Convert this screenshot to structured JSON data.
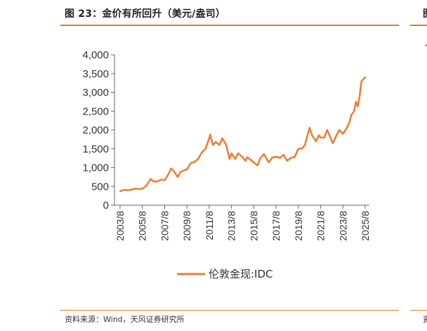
{
  "header": {
    "title": "图 23：金价有所回升（美元/盎司）",
    "title_cut": "图"
  },
  "footer": {
    "source": "资料来源：Wind，天风证券研究所",
    "source_cut": "资"
  },
  "colors": {
    "accent": "#e07b2b",
    "line": "#ed7d31"
  },
  "chart_data": {
    "type": "line",
    "title": "",
    "xlabel": "",
    "ylabel": "",
    "ylim": [
      0,
      4000
    ],
    "y_ticks": [
      "0",
      "500",
      "1,000",
      "1,500",
      "2,000",
      "2,500",
      "3,000",
      "3,500",
      "4,000"
    ],
    "x_ticks": [
      "2003/8",
      "2005/8",
      "2007/8",
      "2009/8",
      "2011/8",
      "2013/8",
      "2015/8",
      "2017/8",
      "2019/8",
      "2021/8",
      "2023/8",
      "2025/8"
    ],
    "legend_position": "bottom-center",
    "series": [
      {
        "name": "伦敦金现:IDC",
        "points": [
          [
            "2003-08",
            370
          ],
          [
            "2003-12",
            410
          ],
          [
            "2004-04",
            400
          ],
          [
            "2004-08",
            410
          ],
          [
            "2004-12",
            440
          ],
          [
            "2005-04",
            430
          ],
          [
            "2005-08",
            440
          ],
          [
            "2005-12",
            510
          ],
          [
            "2006-05",
            700
          ],
          [
            "2006-08",
            630
          ],
          [
            "2006-12",
            630
          ],
          [
            "2007-04",
            680
          ],
          [
            "2007-08",
            670
          ],
          [
            "2007-12",
            820
          ],
          [
            "2008-03",
            980
          ],
          [
            "2008-06",
            900
          ],
          [
            "2008-10",
            750
          ],
          [
            "2009-01",
            880
          ],
          [
            "2009-06",
            940
          ],
          [
            "2009-08",
            950
          ],
          [
            "2009-12",
            1120
          ],
          [
            "2010-04",
            1150
          ],
          [
            "2010-08",
            1230
          ],
          [
            "2010-12",
            1400
          ],
          [
            "2011-04",
            1500
          ],
          [
            "2011-08",
            1780
          ],
          [
            "2011-09",
            1880
          ],
          [
            "2011-12",
            1600
          ],
          [
            "2012-03",
            1680
          ],
          [
            "2012-07",
            1600
          ],
          [
            "2012-10",
            1780
          ],
          [
            "2013-02",
            1620
          ],
          [
            "2013-06",
            1230
          ],
          [
            "2013-08",
            1380
          ],
          [
            "2013-12",
            1230
          ],
          [
            "2014-03",
            1380
          ],
          [
            "2014-07",
            1300
          ],
          [
            "2014-11",
            1180
          ],
          [
            "2015-01",
            1280
          ],
          [
            "2015-06",
            1180
          ],
          [
            "2015-12",
            1060
          ],
          [
            "2016-03",
            1250
          ],
          [
            "2016-07",
            1360
          ],
          [
            "2016-12",
            1140
          ],
          [
            "2017-04",
            1270
          ],
          [
            "2017-08",
            1290
          ],
          [
            "2017-12",
            1260
          ],
          [
            "2018-04",
            1340
          ],
          [
            "2018-08",
            1180
          ],
          [
            "2018-12",
            1260
          ],
          [
            "2019-04",
            1280
          ],
          [
            "2019-08",
            1500
          ],
          [
            "2019-12",
            1510
          ],
          [
            "2020-03",
            1600
          ],
          [
            "2020-08",
            2060
          ],
          [
            "2020-11",
            1850
          ],
          [
            "2021-03",
            1700
          ],
          [
            "2021-06",
            1860
          ],
          [
            "2021-08",
            1800
          ],
          [
            "2021-12",
            1800
          ],
          [
            "2022-03",
            2000
          ],
          [
            "2022-06",
            1830
          ],
          [
            "2022-09",
            1650
          ],
          [
            "2022-12",
            1800
          ],
          [
            "2023-04",
            2000
          ],
          [
            "2023-08",
            1900
          ],
          [
            "2023-12",
            2050
          ],
          [
            "2024-03",
            2200
          ],
          [
            "2024-05",
            2400
          ],
          [
            "2024-08",
            2500
          ],
          [
            "2024-10",
            2750
          ],
          [
            "2024-12",
            2630
          ],
          [
            "2025-02",
            2900
          ],
          [
            "2025-04",
            3300
          ],
          [
            "2025-06",
            3350
          ],
          [
            "2025-08",
            3400
          ]
        ]
      }
    ]
  }
}
